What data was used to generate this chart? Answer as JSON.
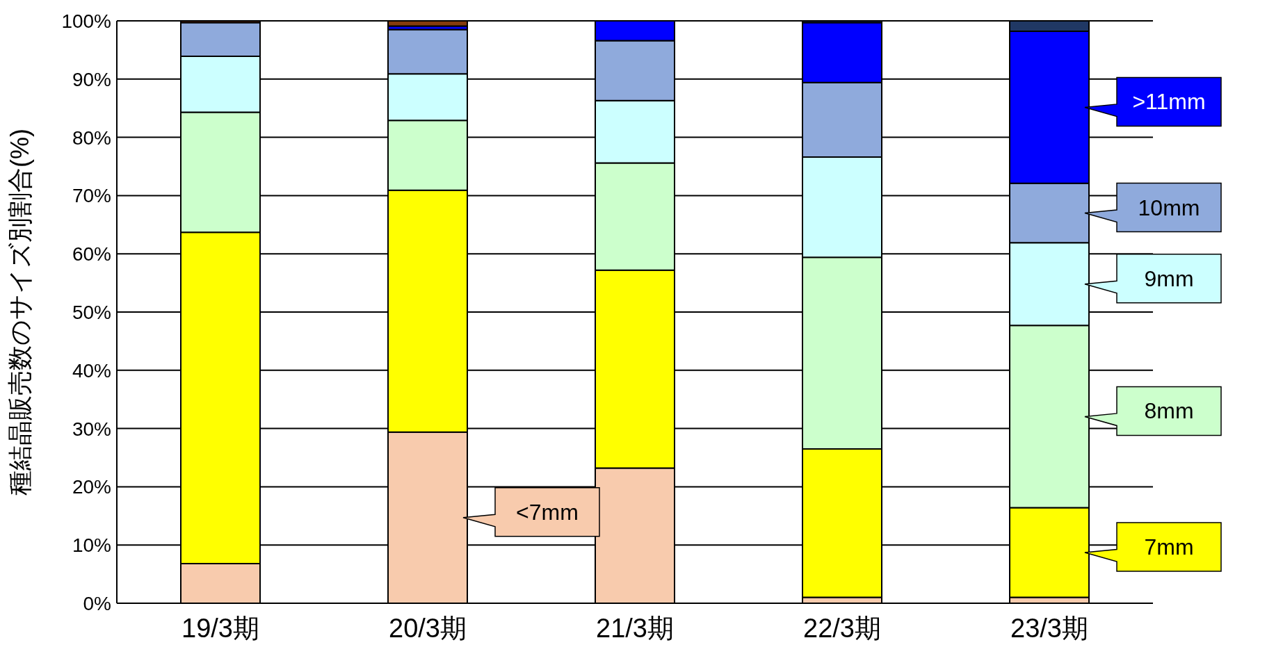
{
  "chart_data": {
    "type": "bar",
    "stacked": true,
    "ylabel": "種結晶販売数のサイズ別割合(%)",
    "categories": [
      "19/3期",
      "20/3期",
      "21/3期",
      "22/3期",
      "23/3期"
    ],
    "series": [
      {
        "name": "<7mm",
        "color": "#f8cbad",
        "values": [
          6.8,
          29.4,
          23.2,
          1.0,
          1.0
        ]
      },
      {
        "name": "7mm",
        "color": "#ffff00",
        "values": [
          56.9,
          41.5,
          34.0,
          25.5,
          15.4
        ]
      },
      {
        "name": "8mm",
        "color": "#ccffcc",
        "values": [
          20.6,
          12.0,
          18.4,
          32.9,
          31.3
        ]
      },
      {
        "name": "9mm",
        "color": "#ccffff",
        "values": [
          9.6,
          8.0,
          10.7,
          17.2,
          14.2
        ]
      },
      {
        "name": "10mm",
        "color": "#8faadc",
        "values": [
          5.8,
          7.6,
          10.3,
          12.8,
          10.2
        ]
      },
      {
        "name": ">11mm",
        "color": "#0000ff",
        "values": [
          0,
          0.6,
          3.4,
          10.3,
          26.1
        ]
      },
      {
        "color": "#843c0c",
        "values": [
          0.3,
          0.9,
          0,
          0,
          0
        ]
      },
      {
        "color": "#203864",
        "values": [
          0,
          0,
          0,
          0.3,
          1.8
        ]
      }
    ],
    "ylim": [
      0,
      100
    ],
    "yticks": [
      {
        "value": 0,
        "label": "0%"
      },
      {
        "value": 10,
        "label": "10%"
      },
      {
        "value": 20,
        "label": "20%"
      },
      {
        "value": 30,
        "label": "30%"
      },
      {
        "value": 40,
        "label": "40%"
      },
      {
        "value": 50,
        "label": "50%"
      },
      {
        "value": 60,
        "label": "60%"
      },
      {
        "value": 70,
        "label": "70%"
      },
      {
        "value": 80,
        "label": "80%"
      },
      {
        "value": 90,
        "label": "90%"
      },
      {
        "value": 100,
        "label": "100%"
      }
    ],
    "grid": "y",
    "legend": false
  }
}
